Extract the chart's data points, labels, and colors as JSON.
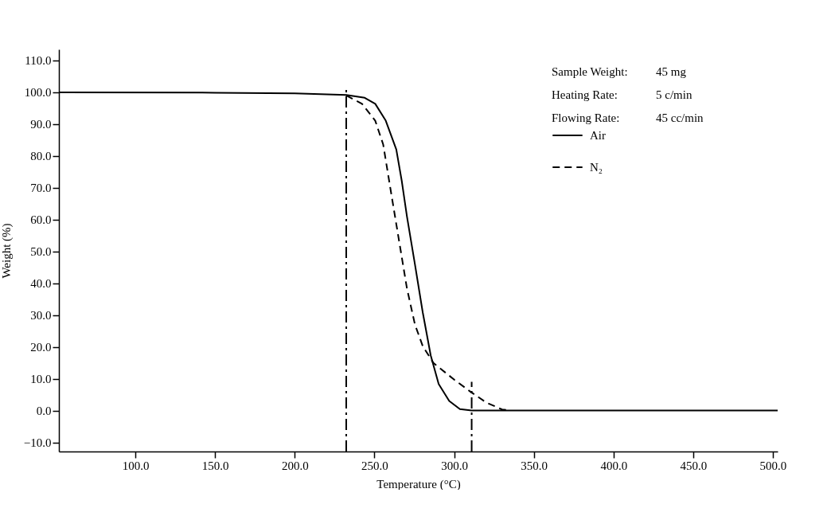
{
  "chart_data": {
    "type": "line",
    "xlabel": "Temperature (°C)",
    "ylabel": "Weight (%)",
    "xlim": [
      52,
      503
    ],
    "ylim": [
      -12.8,
      113.5
    ],
    "xticks": [
      {
        "value": 100,
        "label": "100.0"
      },
      {
        "value": 150,
        "label": "150.0"
      },
      {
        "value": 200,
        "label": "200.0"
      },
      {
        "value": 250,
        "label": "250.0"
      },
      {
        "value": 300,
        "label": "300.0"
      },
      {
        "value": 350,
        "label": "350.0"
      },
      {
        "value": 400,
        "label": "400.0"
      },
      {
        "value": 450,
        "label": "450.0"
      },
      {
        "value": 500,
        "label": "500.0"
      }
    ],
    "yticks": [
      {
        "value": -10,
        "label": "−10.0"
      },
      {
        "value": 0,
        "label": "0.0"
      },
      {
        "value": 10,
        "label": "10.0"
      },
      {
        "value": 20,
        "label": "20.0"
      },
      {
        "value": 30,
        "label": "30.0"
      },
      {
        "value": 40,
        "label": "40.0"
      },
      {
        "value": 50,
        "label": "50.0"
      },
      {
        "value": 60,
        "label": "60.0"
      },
      {
        "value": 70,
        "label": "70.0"
      },
      {
        "value": 80,
        "label": "80.0"
      },
      {
        "value": 90,
        "label": "90.0"
      },
      {
        "value": 100,
        "label": "100.0"
      },
      {
        "value": 110,
        "label": "110.0"
      }
    ],
    "grid": false,
    "legend": "top right",
    "marker": "none",
    "annotations": [
      "Sample Weight:",
      "45 mg",
      "Heating Rate:",
      "5 c/min",
      "Flowing Rate:",
      "45 cc/min"
    ],
    "series": [
      {
        "name": "Air",
        "color": "#000000",
        "line_style": "solid",
        "x": [
          52,
          150,
          200,
          232.3,
          243.9,
          250.5,
          257.1,
          263.7,
          267.1,
          270.4,
          275.4,
          280.3,
          285.3,
          290.3,
          296.9,
          303.6,
          311,
          503
        ],
        "values": [
          100,
          99.9,
          99.7,
          99.2,
          98.3,
          96.4,
          91.1,
          82.1,
          72.3,
          61,
          46,
          30.9,
          17.4,
          8.4,
          3.1,
          0.5,
          0.1,
          0.1
        ]
      },
      {
        "name": "N₂",
        "color": "#000000",
        "line_style": "dashed",
        "x": [
          232.3,
          242.2,
          250.5,
          255.5,
          260.4,
          265.4,
          270.4,
          275.4,
          280.3,
          287,
          300.2,
          310.2,
          320.1,
          330.1,
          335
        ],
        "values": [
          99,
          96.4,
          91.1,
          83.6,
          68.6,
          53.5,
          38.4,
          27.1,
          20.3,
          15,
          9.7,
          6,
          2.6,
          0.4,
          0.1
        ]
      },
      {
        "type": "line",
        "color": "#000000",
        "line_style": "dashdot",
        "x": [
          232.3,
          232.3
        ],
        "values": [
          -12.8,
          101
        ]
      },
      {
        "type": "line",
        "color": "#000000",
        "line_style": "dashdot",
        "x": [
          311,
          311
        ],
        "values": [
          -12.8,
          9.1
        ]
      }
    ]
  }
}
